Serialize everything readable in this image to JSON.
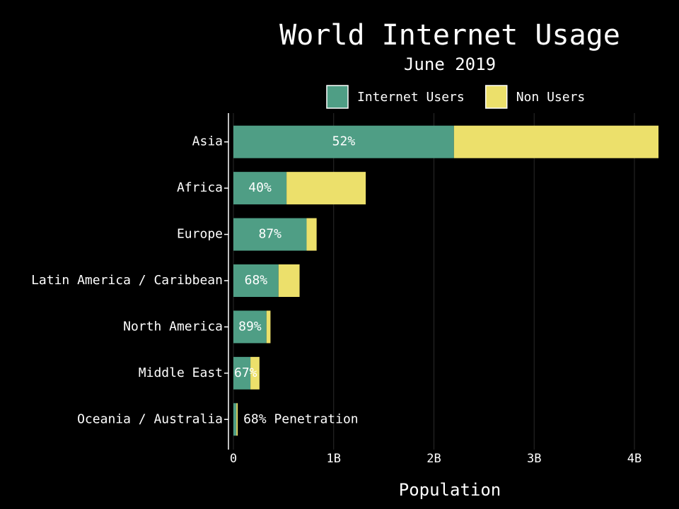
{
  "chart_data": {
    "type": "stacked-barh",
    "title": "World Internet Usage",
    "subtitle": "June 2019",
    "x_label": "Population",
    "categories": [
      "Asia",
      "Africa",
      "Europe",
      "Latin America / Caribbean",
      "North America",
      "Middle East",
      "Oceania / Australia"
    ],
    "series": [
      {
        "name": "Internet Users",
        "color": "#4f9e85",
        "values": [
          2200000000,
          530000000,
          730000000,
          450000000,
          330000000,
          170000000,
          30000000
        ]
      },
      {
        "name": "Non Users",
        "color": "#ece06b",
        "values": [
          2040000000,
          790000000,
          100000000,
          210000000,
          40000000,
          90000000,
          13000000
        ]
      }
    ],
    "penetration": {
      "values": [
        52,
        40,
        87,
        68,
        89,
        67,
        68
      ],
      "value_labels": [
        "52%",
        "40%",
        "87%",
        "68%",
        "89%",
        "67%",
        "68% Penetration"
      ]
    },
    "xlim": [
      0,
      4240000000
    ],
    "xticks": [
      {
        "value": 0,
        "label": "0"
      },
      {
        "value": 1000000000,
        "label": "1B"
      },
      {
        "value": 2000000000,
        "label": "2B"
      },
      {
        "value": 3000000000,
        "label": "3B"
      },
      {
        "value": 4000000000,
        "label": "4B"
      }
    ],
    "grid": true,
    "legend": "top"
  }
}
